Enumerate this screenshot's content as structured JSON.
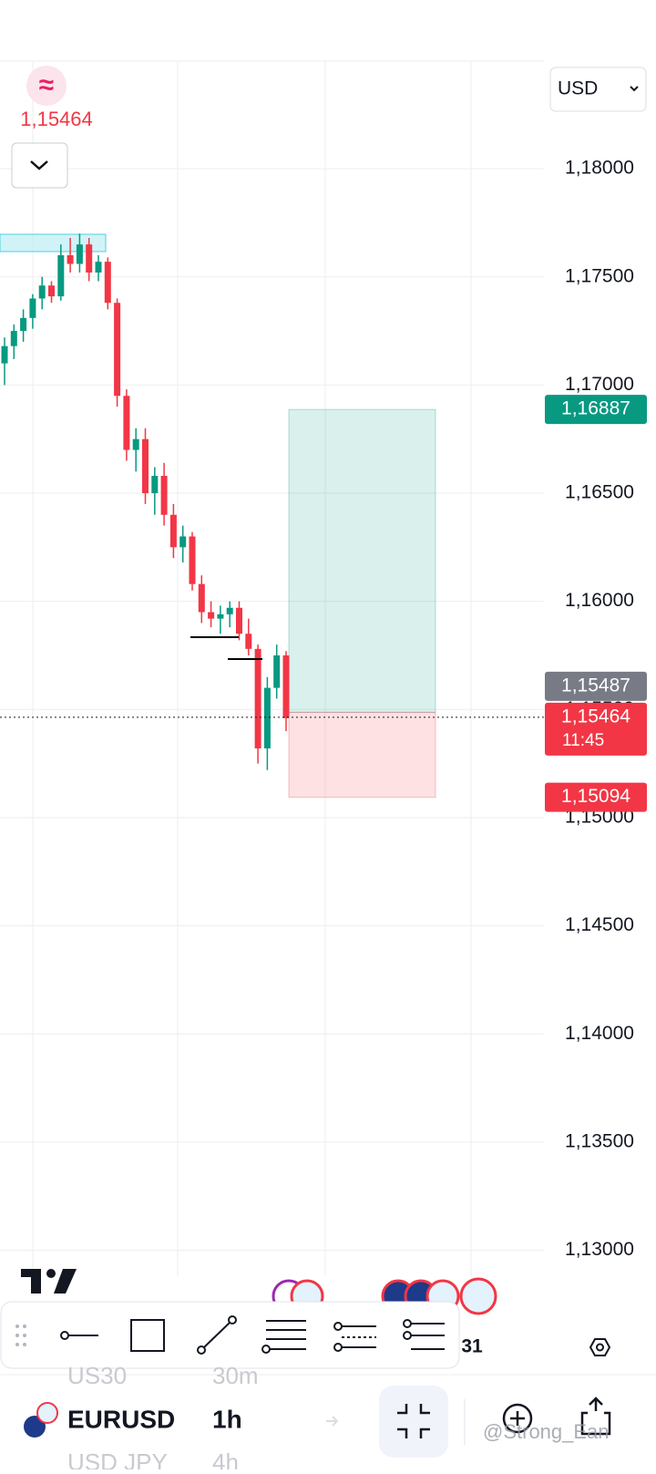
{
  "chart_data": {
    "type": "candlestick",
    "symbol_price": "1,15464",
    "categories": [
      null,
      null,
      null,
      null,
      null,
      null,
      null,
      null,
      null,
      null,
      null,
      null,
      null,
      null,
      null,
      null,
      null,
      null,
      null,
      null,
      null,
      null,
      null,
      null,
      null,
      null,
      null,
      null,
      null,
      null,
      null
    ],
    "open": [
      1.171,
      1.1718,
      1.1725,
      1.1731,
      1.174,
      1.1746,
      1.1741,
      1.176,
      1.1756,
      1.1765,
      1.1752,
      1.1757,
      1.1738,
      1.1695,
      1.167,
      1.1675,
      1.165,
      1.1658,
      1.164,
      1.1625,
      1.163,
      1.1608,
      1.1595,
      1.1592,
      1.1594,
      1.1597,
      1.1585,
      1.1578,
      1.1532,
      1.156,
      1.1575
    ],
    "high": [
      1.1722,
      1.1728,
      1.1735,
      1.1742,
      1.175,
      1.1748,
      1.1765,
      1.1768,
      1.177,
      1.1768,
      1.176,
      1.1759,
      1.174,
      1.1698,
      1.168,
      1.168,
      1.1662,
      1.1664,
      1.1645,
      1.1635,
      1.1632,
      1.1612,
      1.16,
      1.1598,
      1.16,
      1.16,
      1.1592,
      1.158,
      1.1565,
      1.158,
      1.1577
    ],
    "low": [
      1.17,
      1.1712,
      1.172,
      1.1726,
      1.1735,
      1.1738,
      1.1739,
      1.1752,
      1.1752,
      1.1748,
      1.1748,
      1.1735,
      1.169,
      1.1665,
      1.166,
      1.1645,
      1.164,
      1.1635,
      1.162,
      1.1618,
      1.1605,
      1.159,
      1.1588,
      1.1585,
      1.1588,
      1.1582,
      1.1575,
      1.1525,
      1.1522,
      1.1555,
      1.154
    ],
    "close": [
      1.1718,
      1.1725,
      1.1731,
      1.174,
      1.1746,
      1.1741,
      1.176,
      1.1756,
      1.1765,
      1.1752,
      1.1757,
      1.1738,
      1.1695,
      1.167,
      1.1675,
      1.165,
      1.1658,
      1.164,
      1.1625,
      1.163,
      1.1608,
      1.1595,
      1.1592,
      1.1594,
      1.1597,
      1.1585,
      1.1578,
      1.1532,
      1.156,
      1.1575,
      1.1546
    ],
    "up_color": "#089981",
    "down_color": "#f23645",
    "ylim": [
      1.1288,
      1.1878
    ],
    "yticks": [
      {
        "value": 1.18,
        "label": "1,18000"
      },
      {
        "value": 1.175,
        "label": "1,17500"
      },
      {
        "value": 1.17,
        "label": "1,17000"
      },
      {
        "value": 1.165,
        "label": "1,16500"
      },
      {
        "value": 1.16,
        "label": "1,16000"
      },
      {
        "value": 1.155,
        "label": "1,15500"
      },
      {
        "value": 1.15,
        "label": "1,15000"
      },
      {
        "value": 1.145,
        "label": "1,14500"
      },
      {
        "value": 1.14,
        "label": "1,14000"
      },
      {
        "value": 1.135,
        "label": "1,13500"
      },
      {
        "value": 1.13,
        "label": "1,13000"
      }
    ],
    "grid": true,
    "price_labels": [
      {
        "value": 1.16887,
        "label": "1,16887",
        "color": "#089981"
      },
      {
        "value": 1.15487,
        "label": "1,15487",
        "color": "#787b86"
      },
      {
        "value": 1.15464,
        "label": "1,15464",
        "sub": "11:45",
        "color": "#f23645"
      },
      {
        "value": 1.15094,
        "label": "1,15094",
        "color": "#f23645"
      }
    ]
  },
  "ui": {
    "currency": "USD",
    "date_label": "31",
    "symbols": [
      {
        "name": "US30",
        "interval": "30m"
      },
      {
        "name": "EURUSD",
        "interval": "1h"
      },
      {
        "name": "USD JPY",
        "interval": "4h"
      }
    ],
    "watermark": "@Strong_Ean"
  }
}
